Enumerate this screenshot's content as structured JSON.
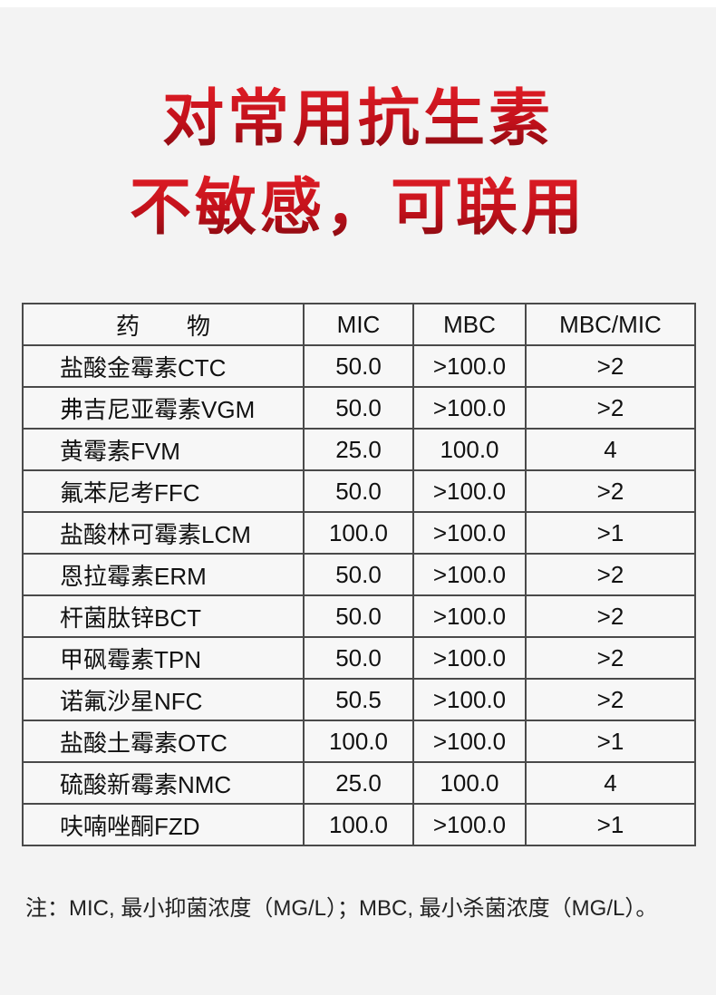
{
  "headline": {
    "line1": "对常用抗生素",
    "line2": "不敏感，可联用",
    "color_top": "#e01e26",
    "color_bottom": "#7d0a10"
  },
  "table": {
    "headers": [
      "药　　物",
      "MIC",
      "MBC",
      "MBC/MIC"
    ],
    "rows": [
      {
        "drug": "盐酸金霉素CTC",
        "mic": "50.0",
        "mbc": ">100.0",
        "ratio": ">2"
      },
      {
        "drug": "弗吉尼亚霉素VGM",
        "mic": "50.0",
        "mbc": ">100.0",
        "ratio": ">2"
      },
      {
        "drug": "黄霉素FVM",
        "mic": "25.0",
        "mbc": "100.0",
        "ratio": "4"
      },
      {
        "drug": "氟苯尼考FFC",
        "mic": "50.0",
        "mbc": ">100.0",
        "ratio": ">2"
      },
      {
        "drug": "盐酸林可霉素LCM",
        "mic": "100.0",
        "mbc": ">100.0",
        "ratio": ">1"
      },
      {
        "drug": "恩拉霉素ERM",
        "mic": "50.0",
        "mbc": ">100.0",
        "ratio": ">2"
      },
      {
        "drug": "杆菌肽锌BCT",
        "mic": "50.0",
        "mbc": ">100.0",
        "ratio": ">2"
      },
      {
        "drug": "甲砜霉素TPN",
        "mic": "50.0",
        "mbc": ">100.0",
        "ratio": ">2"
      },
      {
        "drug": "诺氟沙星NFC",
        "mic": "50.5",
        "mbc": ">100.0",
        "ratio": ">2"
      },
      {
        "drug": "盐酸土霉素OTC",
        "mic": "100.0",
        "mbc": ">100.0",
        "ratio": ">1"
      },
      {
        "drug": "硫酸新霉素NMC",
        "mic": "25.0",
        "mbc": "100.0",
        "ratio": "4"
      },
      {
        "drug": "呋喃唑酮FZD",
        "mic": "100.0",
        "mbc": ">100.0",
        "ratio": ">1"
      }
    ]
  },
  "note": "注：MIC, 最小抑菌浓度（MG/L）；MBC, 最小杀菌浓度（MG/L）。"
}
